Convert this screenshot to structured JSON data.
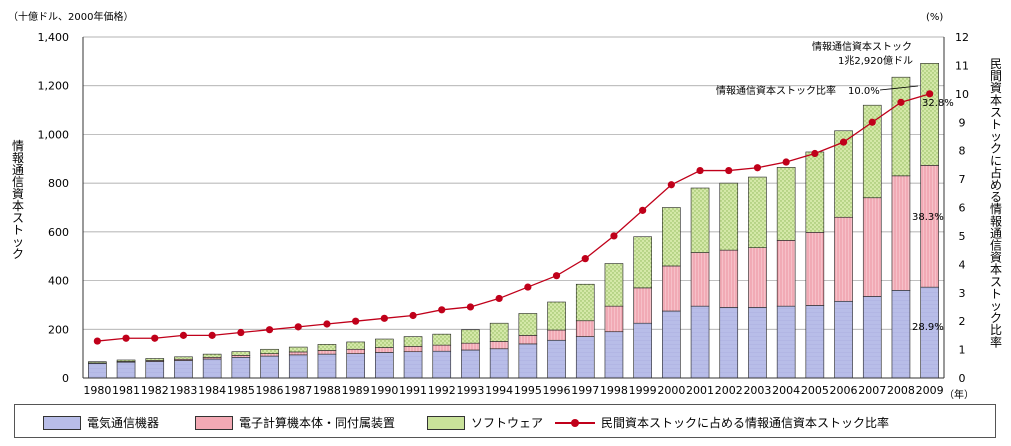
{
  "chart_data": {
    "type": "bar",
    "left_unit": "（十億ドル、2000年価格）",
    "right_unit": "(%)",
    "x_unit": "（年）",
    "ylabel": "情報通信資本ストック",
    "y2label": "民間資本ストックに占める情報通信資本ストック比率",
    "ylim": [
      0,
      1400
    ],
    "yticks": [
      "0",
      "200",
      "400",
      "600",
      "800",
      "1,000",
      "1,200",
      "1,400"
    ],
    "y2lim": [
      0,
      12
    ],
    "y2ticks": [
      "0",
      "1",
      "2",
      "3",
      "4",
      "5",
      "6",
      "7",
      "8",
      "9",
      "10",
      "11",
      "12"
    ],
    "categories": [
      "1980",
      "1981",
      "1982",
      "1983",
      "1984",
      "1985",
      "1986",
      "1987",
      "1988",
      "1989",
      "1990",
      "1991",
      "1992",
      "1993",
      "1994",
      "1995",
      "1996",
      "1997",
      "1998",
      "1999",
      "2000",
      "2001",
      "2002",
      "2003",
      "2004",
      "2005",
      "2006",
      "2007",
      "2008",
      "2009"
    ],
    "series": [
      {
        "name": "電気通信機器",
        "color": "#b8bde8",
        "values": [
          60,
          65,
          68,
          72,
          78,
          85,
          90,
          95,
          98,
          100,
          105,
          108,
          110,
          115,
          120,
          140,
          155,
          170,
          190,
          225,
          275,
          295,
          290,
          290,
          295,
          298,
          315,
          335,
          360,
          373
        ]
      },
      {
        "name": "電子計算機本体・同付属装置",
        "color": "#f3a9b4",
        "values": [
          2,
          3,
          4,
          5,
          7,
          8,
          10,
          12,
          15,
          18,
          20,
          22,
          25,
          28,
          30,
          35,
          42,
          65,
          105,
          145,
          185,
          220,
          235,
          245,
          270,
          300,
          345,
          405,
          470,
          500
        ]
      },
      {
        "name": "ソフトウェア",
        "color": "#c9e29a",
        "values": [
          5,
          6,
          8,
          10,
          13,
          15,
          18,
          20,
          25,
          30,
          35,
          40,
          45,
          55,
          75,
          90,
          115,
          150,
          175,
          210,
          240,
          265,
          275,
          290,
          300,
          330,
          355,
          380,
          405,
          419
        ]
      }
    ],
    "line": {
      "name": "民間資本ストックに占める情報通信資本ストック比率",
      "color": "#c0001a",
      "values": [
        1.3,
        1.4,
        1.4,
        1.5,
        1.5,
        1.6,
        1.7,
        1.8,
        1.9,
        2.0,
        2.1,
        2.2,
        2.4,
        2.5,
        2.8,
        3.2,
        3.6,
        4.2,
        5.0,
        5.9,
        6.8,
        7.3,
        7.3,
        7.4,
        7.6,
        7.9,
        8.3,
        9.0,
        9.7,
        10.0
      ]
    },
    "annotations": {
      "stock_label_1": "情報通信資本ストック",
      "stock_label_2": "1兆2,920億ドル",
      "ratio_label": "情報通信資本ストック比率",
      "ratio_value": "10.0%",
      "share_software": "32.8%",
      "share_computer": "38.3%",
      "share_telecom": "28.9%"
    },
    "legend_position": "bottom"
  },
  "legend": [
    {
      "label": "電気通信機器",
      "kind": "telecom"
    },
    {
      "label": "電子計算機本体・同付属装置",
      "kind": "computer"
    },
    {
      "label": "ソフトウェア",
      "kind": "software"
    },
    {
      "label": "民間資本ストックに占める情報通信資本ストック比率",
      "kind": "line"
    }
  ]
}
